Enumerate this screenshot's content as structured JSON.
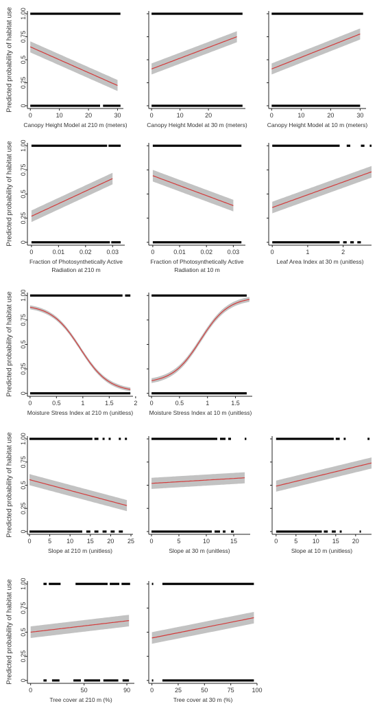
{
  "figure": {
    "ylabel": "Predicted probability of habitat use",
    "colors": {
      "band": "#c2c2c2",
      "line": "#d23a3a",
      "obs": "#000000",
      "frame": "#222222"
    }
  },
  "chart_data": [
    {
      "type": "line",
      "id": "chm210",
      "xlabel_lines": [
        "Canopy Height Model at 210 m (meters)"
      ],
      "show_ylabel": true,
      "xlim": [
        -1,
        32
      ],
      "xticks": [
        0,
        10,
        20,
        30
      ],
      "ylim": [
        -0.03,
        1.03
      ],
      "yticks": [
        0,
        0.25,
        0.5,
        0.75,
        1
      ],
      "ytick_labels": [
        "0",
        "0.25",
        "0.5",
        "0.75",
        "1.00"
      ],
      "fit": {
        "x": [
          0,
          30
        ],
        "y0": 0.64,
        "y1": 0.22,
        "shape": "linear",
        "se": 0.06
      },
      "obs": {
        "one": [
          [
            0,
            31
          ]
        ],
        "zero": [
          [
            0,
            24
          ],
          [
            25,
            31
          ]
        ]
      }
    },
    {
      "type": "line",
      "id": "chm30",
      "xlabel_lines": [
        "Canopy Height Model at 30 m (meters)"
      ],
      "show_ylabel": false,
      "xlim": [
        -1,
        33
      ],
      "xticks": [
        0,
        10,
        20
      ],
      "ylim": [
        -0.03,
        1.03
      ],
      "yticks": [
        0,
        0.25,
        0.5,
        0.75,
        1
      ],
      "ytick_labels": [],
      "fit": {
        "x": [
          0,
          30
        ],
        "y0": 0.4,
        "y1": 0.75,
        "shape": "linear",
        "se": 0.06
      },
      "obs": {
        "one": [
          [
            0,
            32
          ]
        ],
        "zero": [
          [
            0,
            32
          ]
        ]
      }
    },
    {
      "type": "line",
      "id": "chm10",
      "xlabel_lines": [
        "Canopy Height Model at 10 m (meters)"
      ],
      "show_ylabel": false,
      "xlim": [
        -1,
        32
      ],
      "xticks": [
        0,
        10,
        20,
        30
      ],
      "ylim": [
        -0.03,
        1.03
      ],
      "yticks": [
        0,
        0.25,
        0.5,
        0.75,
        1
      ],
      "ytick_labels": [],
      "fit": {
        "x": [
          0,
          30
        ],
        "y0": 0.4,
        "y1": 0.78,
        "shape": "linear",
        "se": 0.06
      },
      "obs": {
        "one": [
          [
            0,
            31
          ]
        ],
        "zero": [
          [
            0,
            30
          ]
        ]
      }
    },
    {
      "type": "line",
      "id": "fpar210",
      "xlabel_lines": [
        "Fraction of Photosynthetically Active",
        "Radiation at 210 m"
      ],
      "show_ylabel": true,
      "xlim": [
        -0.0015,
        0.0345
      ],
      "xticks": [
        0,
        0.01,
        0.02,
        0.03
      ],
      "ylim": [
        -0.03,
        1.03
      ],
      "yticks": [
        0,
        0.25,
        0.5,
        0.75,
        1
      ],
      "ytick_labels": [
        "0",
        "0.25",
        "0.5",
        "0.75",
        "1.00"
      ],
      "fit": {
        "x": [
          0,
          0.03
        ],
        "y0": 0.27,
        "y1": 0.66,
        "shape": "linear",
        "se": 0.06
      },
      "obs": {
        "one": [
          [
            0,
            0.028
          ],
          [
            0.0285,
            0.033
          ]
        ],
        "zero": [
          [
            0,
            0.029
          ],
          [
            0.0295,
            0.033
          ]
        ]
      }
    },
    {
      "type": "line",
      "id": "fpar10",
      "xlabel_lines": [
        "Fraction of Photosynthetically Active",
        "Radiation at 10 m"
      ],
      "show_ylabel": false,
      "xlim": [
        -0.0015,
        0.0345
      ],
      "xticks": [
        0,
        0.01,
        0.02,
        0.03
      ],
      "ylim": [
        -0.03,
        1.03
      ],
      "yticks": [
        0,
        0.25,
        0.5,
        0.75,
        1
      ],
      "ytick_labels": [],
      "fit": {
        "x": [
          0,
          0.03
        ],
        "y0": 0.69,
        "y1": 0.38,
        "shape": "linear",
        "se": 0.06
      },
      "obs": {
        "one": [
          [
            0,
            0.033
          ]
        ],
        "zero": [
          [
            0,
            0.033
          ]
        ]
      }
    },
    {
      "type": "line",
      "id": "lai30",
      "xlabel_lines": [
        "Leaf Area Index at 30 m (unitless)"
      ],
      "show_ylabel": false,
      "xlim": [
        -0.1,
        2.8
      ],
      "xticks": [
        0,
        1,
        2
      ],
      "ylim": [
        -0.03,
        1.03
      ],
      "yticks": [
        0,
        0.25,
        0.5,
        0.75,
        1
      ],
      "ytick_labels": [],
      "fit": {
        "x": [
          0,
          2.8
        ],
        "y0": 0.36,
        "y1": 0.73,
        "shape": "linear",
        "se": 0.06
      },
      "obs": {
        "one": [
          [
            0,
            1.9
          ],
          [
            2.1,
            2.2
          ],
          [
            2.5,
            2.6
          ],
          [
            2.75,
            2.8
          ]
        ],
        "zero": [
          [
            0,
            1.9
          ],
          [
            2.0,
            2.1
          ],
          [
            2.2,
            2.3
          ],
          [
            2.4,
            2.5
          ]
        ]
      }
    },
    {
      "type": "line",
      "id": "msi210",
      "xlabel_lines": [
        "Moisture Stress Index at 210 m (unitless)"
      ],
      "show_ylabel": true,
      "xlim": [
        -0.05,
        1.95
      ],
      "xticks": [
        0,
        0.5,
        1,
        1.5,
        2
      ],
      "ytick_labels": [
        "0",
        "0.25",
        "0.5",
        "0.75",
        "1.00"
      ],
      "ylim": [
        -0.03,
        1.03
      ],
      "yticks": [
        0,
        0.25,
        0.5,
        0.75,
        1
      ],
      "fit": {
        "x": [
          0,
          1.9
        ],
        "y0": 0.88,
        "y1": 0.04,
        "shape": "logistic",
        "se": 0.02
      },
      "obs": {
        "one": [
          [
            0,
            1.75
          ],
          [
            1.8,
            1.9
          ]
        ],
        "zero": [
          [
            0,
            1.9
          ]
        ]
      }
    },
    {
      "type": "line",
      "id": "msi10",
      "xlabel_lines": [
        "Moisture Stress Index at 10 m (unitless)"
      ],
      "show_ylabel": false,
      "xlim": [
        -0.05,
        1.8
      ],
      "xticks": [
        0,
        0.5,
        1,
        1.5
      ],
      "ylim": [
        -0.03,
        1.03
      ],
      "yticks": [
        0,
        0.25,
        0.5,
        0.75,
        1
      ],
      "ytick_labels": [],
      "fit": {
        "x": [
          0,
          1.75
        ],
        "y0": 0.13,
        "y1": 0.96,
        "shape": "logistic",
        "se": 0.025
      },
      "obs": {
        "one": [
          [
            0,
            1.7
          ]
        ],
        "zero": [
          [
            0,
            1.7
          ]
        ]
      }
    },
    {
      "type": "line",
      "id": "slope210",
      "xlabel_lines": [
        "Slope at 210 m (unitless)"
      ],
      "show_ylabel": true,
      "xlim": [
        -0.5,
        25.5
      ],
      "xticks": [
        0,
        5,
        10,
        15,
        20,
        25
      ],
      "ylim": [
        -0.03,
        1.03
      ],
      "yticks": [
        0,
        0.25,
        0.5,
        0.75,
        1
      ],
      "ytick_labels": [
        "0",
        "0.25",
        "0.5",
        "0.75",
        "1.00"
      ],
      "fit": {
        "x": [
          0,
          24
        ],
        "y0": 0.56,
        "y1": 0.28,
        "shape": "linear",
        "se": 0.06
      },
      "obs": {
        "one": [
          [
            0,
            15.5
          ],
          [
            16,
            17
          ],
          [
            18,
            18.5
          ],
          [
            19.5,
            20
          ],
          [
            22,
            22.5
          ],
          [
            23.5,
            24
          ]
        ],
        "zero": [
          [
            0,
            13
          ],
          [
            14,
            15
          ],
          [
            16,
            17
          ],
          [
            18,
            19
          ],
          [
            20,
            21
          ],
          [
            22,
            23
          ]
        ]
      }
    },
    {
      "type": "line",
      "id": "slope30",
      "xlabel_lines": [
        "Slope at 30 m (unitless)"
      ],
      "show_ylabel": false,
      "xlim": [
        -0.5,
        18
      ],
      "xticks": [
        0,
        5,
        10,
        15
      ],
      "ylim": [
        -0.03,
        1.03
      ],
      "yticks": [
        0,
        0.25,
        0.5,
        0.75,
        1
      ],
      "ytick_labels": [],
      "fit": {
        "x": [
          0,
          17
        ],
        "y0": 0.52,
        "y1": 0.58,
        "shape": "linear",
        "se": 0.06
      },
      "obs": {
        "one": [
          [
            0,
            12
          ],
          [
            12.5,
            13.5
          ],
          [
            14,
            14.5
          ],
          [
            17,
            17.3
          ]
        ],
        "zero": [
          [
            0,
            11
          ],
          [
            11.5,
            12.5
          ],
          [
            13,
            13.5
          ],
          [
            14.5,
            15
          ]
        ]
      }
    },
    {
      "type": "line",
      "id": "slope10",
      "xlabel_lines": [
        "Slope at 10 m (unitless)"
      ],
      "show_ylabel": false,
      "xlim": [
        -1,
        24
      ],
      "xticks": [
        0,
        5,
        10,
        15,
        20
      ],
      "ylim": [
        -0.03,
        1.03
      ],
      "yticks": [
        0,
        0.25,
        0.5,
        0.75,
        1
      ],
      "ytick_labels": [],
      "fit": {
        "x": [
          0,
          24
        ],
        "y0": 0.49,
        "y1": 0.74,
        "shape": "linear",
        "se": 0.06
      },
      "obs": {
        "one": [
          [
            0,
            14.5
          ],
          [
            15,
            16
          ],
          [
            17,
            17.5
          ],
          [
            23,
            23.5
          ]
        ],
        "zero": [
          [
            0,
            11.5
          ],
          [
            12,
            13
          ],
          [
            14,
            15
          ],
          [
            16,
            16.5
          ],
          [
            21,
            21.3
          ]
        ]
      }
    },
    {
      "type": "line",
      "id": "tree210",
      "xlabel_lines": [
        "Tree cover at 210 m (%)"
      ],
      "show_ylabel": true,
      "xlim": [
        -3,
        97
      ],
      "xticks": [
        0,
        50,
        90
      ],
      "ylim": [
        -0.03,
        1.03
      ],
      "yticks": [
        0,
        0.25,
        0.5,
        0.75,
        1
      ],
      "ytick_labels": [
        "0",
        "0.25",
        "0.5",
        "0.75",
        "1.00"
      ],
      "fit": {
        "x": [
          0,
          92
        ],
        "y0": 0.5,
        "y1": 0.62,
        "shape": "linear",
        "se": 0.06
      },
      "obs": {
        "one": [
          [
            12,
            15
          ],
          [
            17,
            28
          ],
          [
            42,
            72
          ],
          [
            74,
            83
          ],
          [
            85,
            93
          ]
        ],
        "zero": [
          [
            12,
            15
          ],
          [
            20,
            27
          ],
          [
            40,
            47
          ],
          [
            50,
            65
          ],
          [
            68,
            82
          ],
          [
            86,
            92
          ]
        ]
      }
    },
    {
      "type": "line",
      "id": "tree30",
      "xlabel_lines": [
        "Tree cover at 30 m (%)"
      ],
      "show_ylabel": false,
      "xlim": [
        -3,
        100
      ],
      "xticks": [
        0,
        25,
        50,
        75,
        100
      ],
      "ylim": [
        -0.03,
        1.03
      ],
      "yticks": [
        0,
        0.25,
        0.5,
        0.75,
        1
      ],
      "ytick_labels": [],
      "fit": {
        "x": [
          0,
          97
        ],
        "y0": 0.44,
        "y1": 0.65,
        "shape": "linear",
        "se": 0.06
      },
      "obs": {
        "one": [
          [
            0,
            1
          ],
          [
            10,
            97
          ]
        ],
        "zero": [
          [
            0,
            1
          ],
          [
            10,
            97
          ]
        ]
      }
    }
  ]
}
